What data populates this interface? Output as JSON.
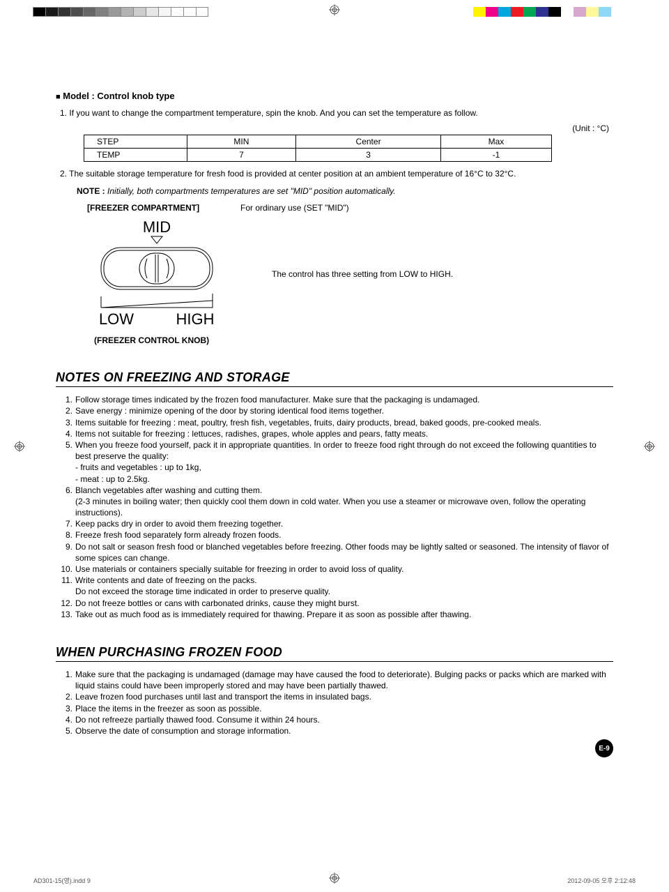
{
  "colorBars": {
    "left": [
      "#000000",
      "#1a1a1a",
      "#333333",
      "#4d4d4d",
      "#666666",
      "#808080",
      "#999999",
      "#b3b3b3",
      "#cccccc",
      "#e6e6e6",
      "#f5f5f5",
      "#ffffff",
      "#ffffff",
      "#ffffff"
    ],
    "right": [
      "#ffffff",
      "#fff200",
      "#ec008c",
      "#00a6e0",
      "#ed1c24",
      "#00a651",
      "#2e3192",
      "#000000",
      "#ffffff",
      "#d8a7cd",
      "#fff799",
      "#8ed8f8",
      "#ffffff",
      "#ffffff"
    ]
  },
  "heading": {
    "model": "Model : Control knob type"
  },
  "intro": {
    "para1_num": "1.",
    "para1": "If you want to change the compartment temperature, spin the knob. And you can set the temperature as follow.",
    "unit": "(Unit : °C)"
  },
  "table": {
    "headerRow": [
      "STEP",
      "MIN",
      "Center",
      "Max"
    ],
    "dataRow": [
      "TEMP",
      "7",
      "3",
      "-1"
    ]
  },
  "para2_num": "2.",
  "para2": "The suitable storage temperature for fresh food is provided at center position at an ambient temperature of 16°C to 32°C.",
  "note": {
    "bold": "NOTE :",
    "italic": "Initially, both compartments temperatures are set \"MID\" position automatically."
  },
  "freezer": {
    "label": "[FREEZER COMPARTMENT]",
    "ordinary": "For ordinary use (SET \"MID\")",
    "desc": "The control has three setting from LOW to HIGH.",
    "mid": "MID",
    "low": "LOW",
    "high": "HIGH",
    "caption": "(FREEZER CONTROL KNOB)"
  },
  "section1": {
    "title": "NOTES ON FREEZING AND STORAGE",
    "items": [
      "Follow storage times indicated by the frozen food manufacturer. Make sure that the packaging is undamaged.",
      "Save energy : minimize opening of the door by storing identical food items together.",
      "Items suitable for freezing : meat, poultry, fresh fish, vegetables, fruits, dairy products, bread, baked goods, pre-cooked meals.",
      "Items not suitable for freezing : lettuces, radishes, grapes, whole apples and pears, fatty meats.",
      "When you freeze food yourself, pack it in appropriate quantities. In order to freeze food right through do not exceed the following quantities to best preserve the quality:\n- fruits and vegetables : up to 1kg,\n- meat : up to 2.5kg.",
      "Blanch vegetables after washing and cutting them.\n(2-3 minutes in boiling water; then quickly cool them down in cold water. When you use a steamer or microwave oven, follow the operating instructions).",
      "Keep packs dry in order to avoid them freezing together.",
      "Freeze fresh food separately form already frozen foods.",
      "Do not salt or season fresh food or blanched vegetables before freezing. Other foods may be lightly salted or seasoned. The intensity of flavor of some spices can change.",
      "Use materials or containers specially suitable for freezing in order to avoid loss of quality.",
      "Write contents and date of freezing on the packs.\nDo not exceed the storage time indicated in order to preserve quality.",
      "Do not freeze bottles or cans with carbonated drinks, cause they might burst.",
      "Take out as much food as is immediately required for thawing. Prepare it as soon as possible after thawing."
    ]
  },
  "section2": {
    "title": "WHEN PURCHASING FROZEN FOOD",
    "items": [
      "Make sure that the packaging is undamaged (damage may have caused the food to deteriorate). Bulging packs or packs which are marked with liquid stains could have been improperly stored and may have been partially thawed.",
      "Leave frozen food purchases until last and transport the items in insulated bags.",
      "Place the items in the freezer as soon as possible.",
      "Do not refreeze partially thawed food. Consume it within 24 hours.",
      "Observe the date of consumption and storage information."
    ]
  },
  "pageNumber": "E-9",
  "footer": {
    "left": "AD301-15(영).indd   9",
    "right": "2012-09-05   오후 2:12:48"
  }
}
